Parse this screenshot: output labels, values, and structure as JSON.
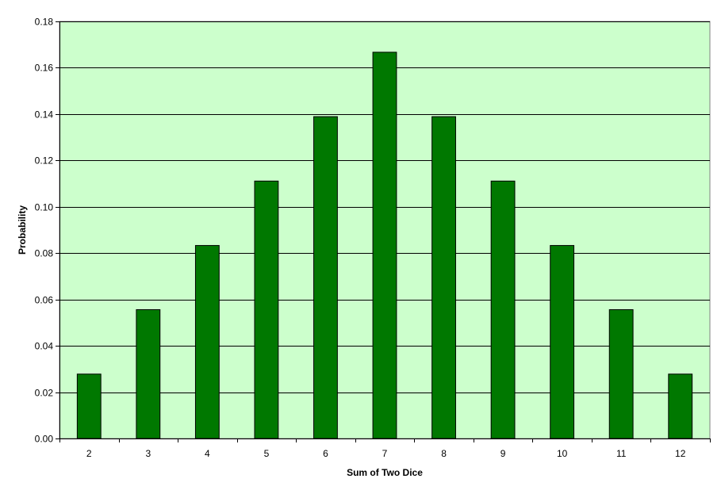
{
  "chart_data": {
    "type": "bar",
    "title": "",
    "xlabel": "Sum of Two Dice",
    "ylabel": "Probability",
    "categories": [
      "2",
      "3",
      "4",
      "5",
      "6",
      "7",
      "8",
      "9",
      "10",
      "11",
      "12"
    ],
    "values": [
      0.0278,
      0.0556,
      0.0833,
      0.1111,
      0.1389,
      0.1667,
      0.1389,
      0.1111,
      0.0833,
      0.0556,
      0.0278
    ],
    "ylim": [
      0,
      0.18
    ],
    "yticks": [
      "0.00",
      "0.02",
      "0.04",
      "0.06",
      "0.08",
      "0.10",
      "0.12",
      "0.14",
      "0.16",
      "0.18"
    ],
    "grid": true,
    "legend": "none",
    "colors": {
      "bar": "#007800",
      "plot_background": "#ccffcc",
      "gridline": "#000000"
    }
  }
}
